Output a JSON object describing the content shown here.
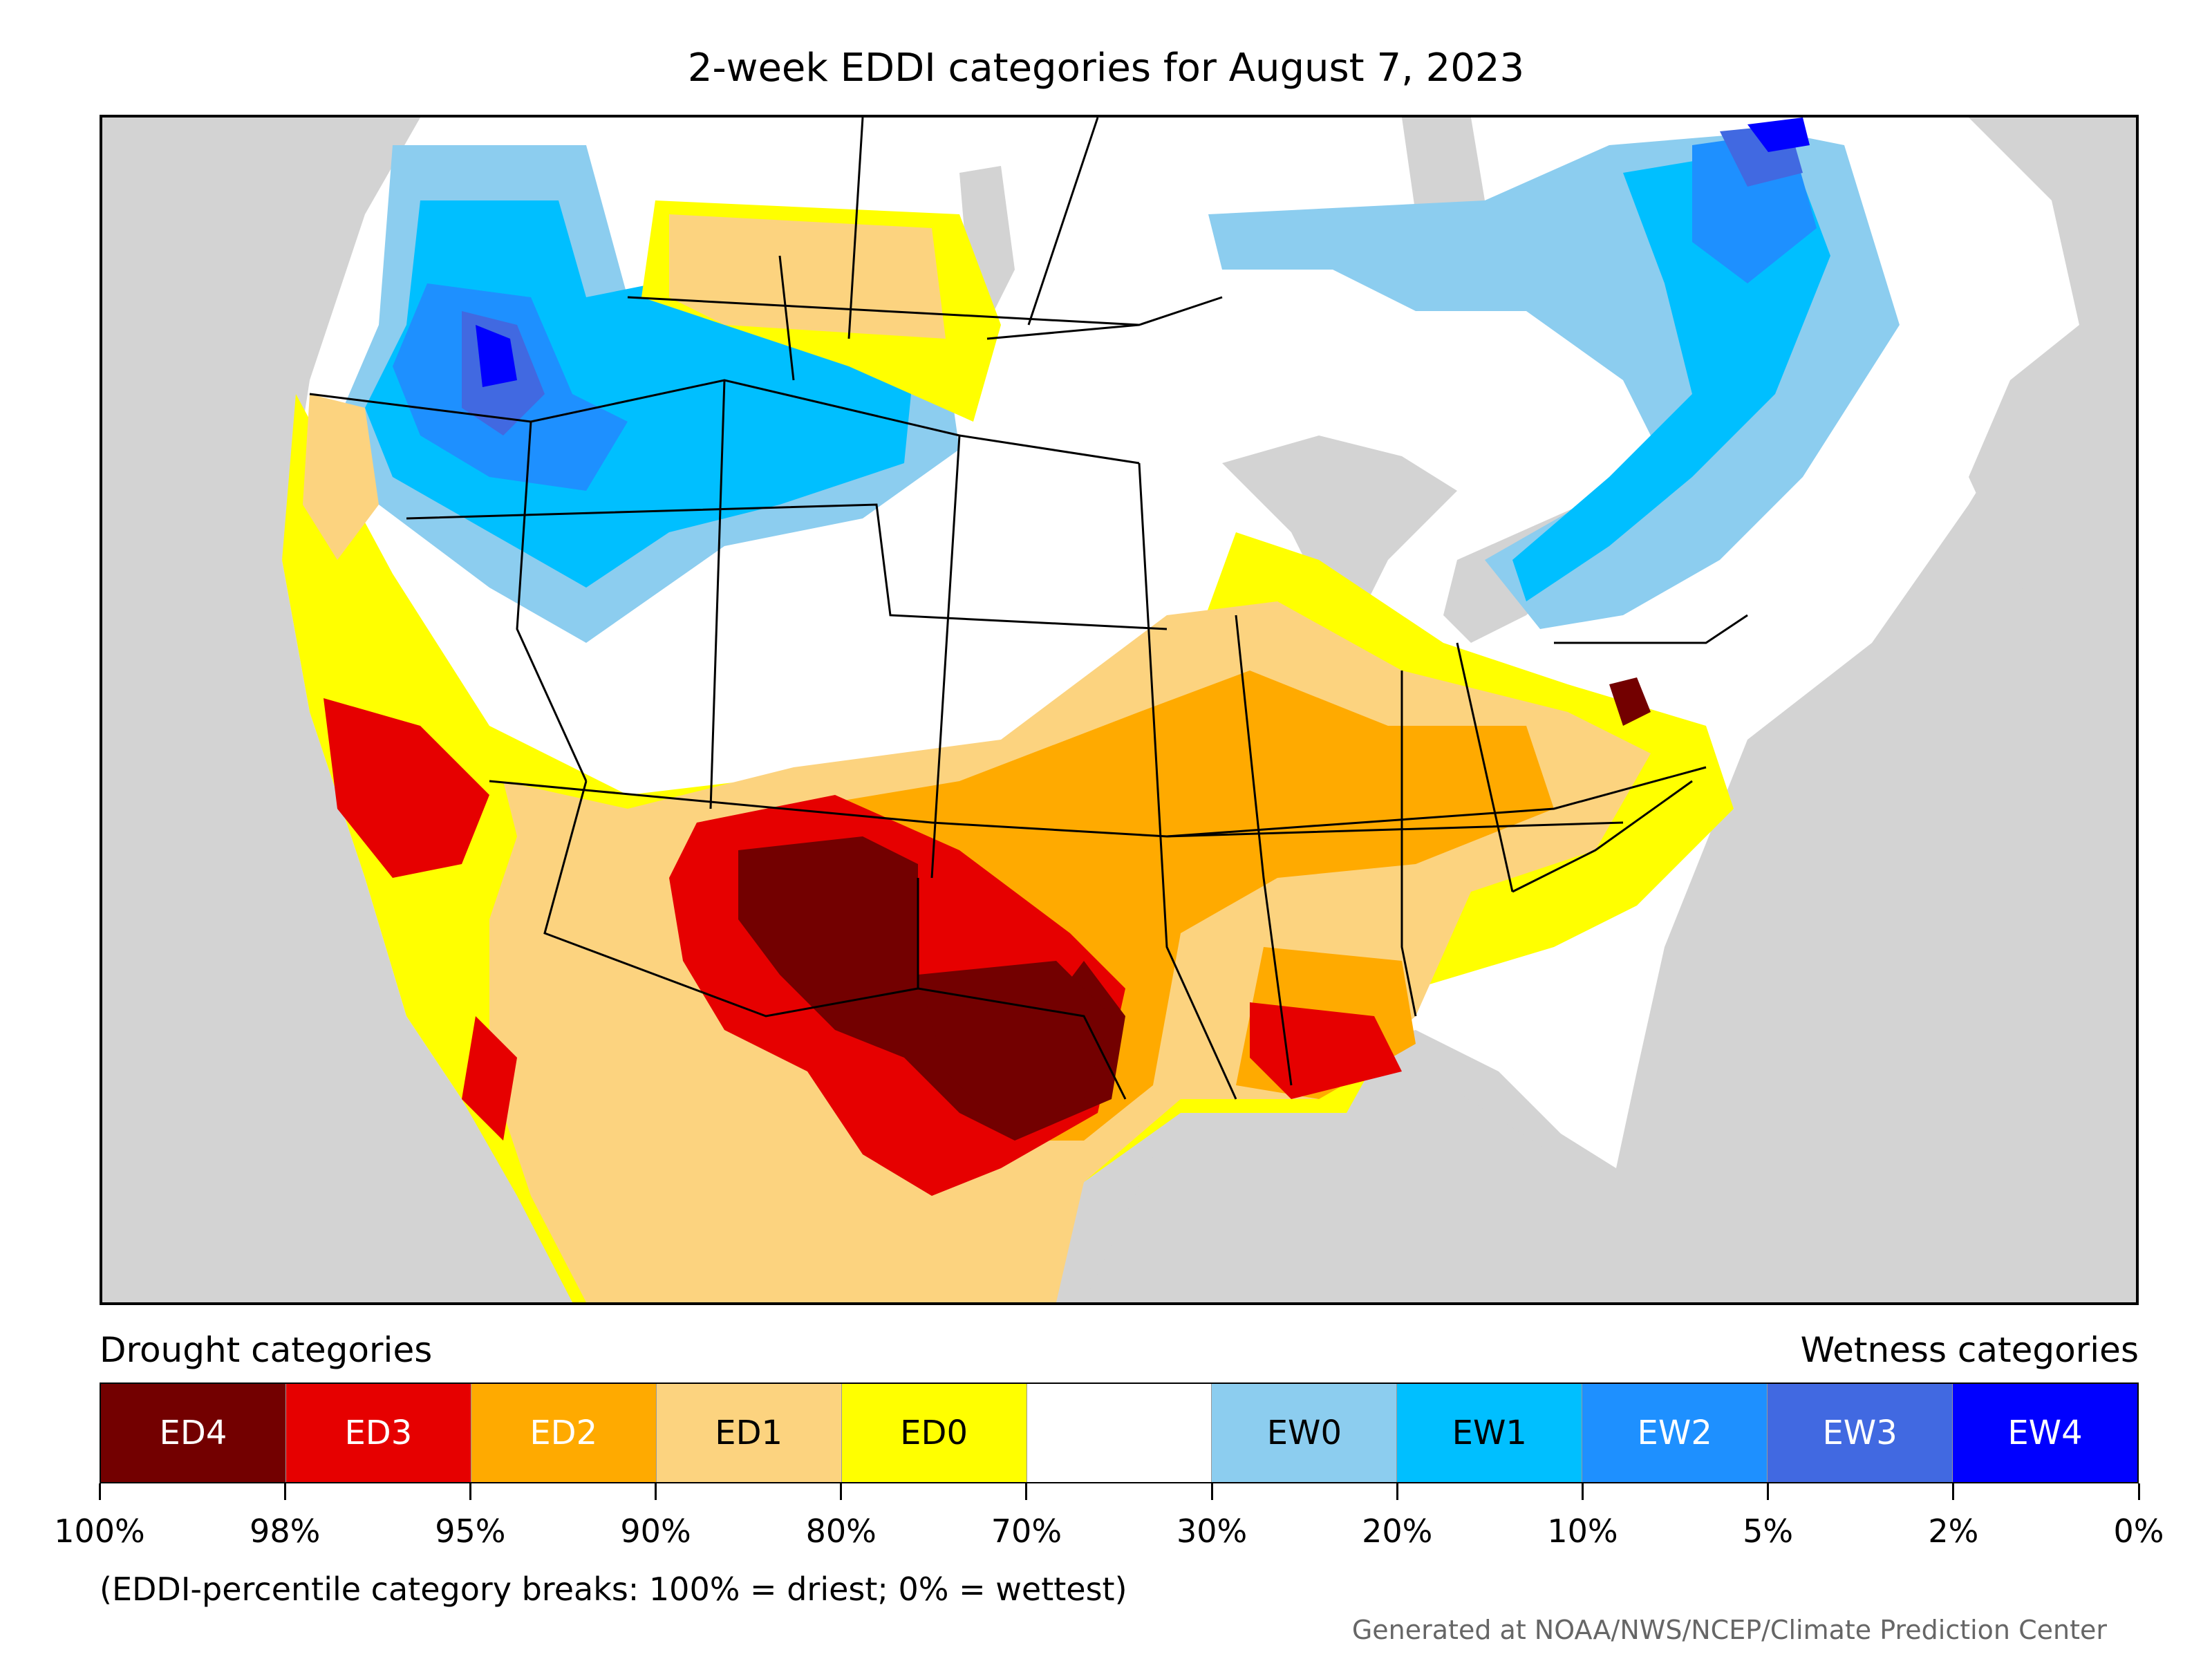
{
  "title": "2-week EDDI categories for August 7, 2023",
  "map": {
    "region": "Contiguous United States",
    "colors": {
      "ED4": "#730000",
      "ED3": "#e60000",
      "ED2": "#ffaa00",
      "ED1": "#fcd37f",
      "ED0": "#ffff00",
      "neutral": "#ffffff",
      "EW0": "#8ccdef",
      "EW1": "#00bfff",
      "EW2": "#1e90ff",
      "EW3": "#4169e1",
      "EW4": "#0000ff",
      "background": "#d3d3d3"
    }
  },
  "legend": {
    "drought_heading": "Drought categories",
    "wetness_heading": "Wetness categories",
    "categories": [
      {
        "label": "ED4",
        "color": "#730000",
        "text_color": "#ffffff"
      },
      {
        "label": "ED3",
        "color": "#e60000",
        "text_color": "#ffffff"
      },
      {
        "label": "ED2",
        "color": "#ffaa00",
        "text_color": "#ffffff"
      },
      {
        "label": "ED1",
        "color": "#fcd37f",
        "text_color": "#000000"
      },
      {
        "label": "ED0",
        "color": "#ffff00",
        "text_color": "#000000"
      },
      {
        "label": "",
        "color": "#ffffff",
        "text_color": "#000000"
      },
      {
        "label": "EW0",
        "color": "#8ccdef",
        "text_color": "#000000"
      },
      {
        "label": "EW1",
        "color": "#00bfff",
        "text_color": "#000000"
      },
      {
        "label": "EW2",
        "color": "#1e90ff",
        "text_color": "#ffffff"
      },
      {
        "label": "EW3",
        "color": "#4169e1",
        "text_color": "#ffffff"
      },
      {
        "label": "EW4",
        "color": "#0000ff",
        "text_color": "#ffffff"
      }
    ],
    "tick_labels": [
      "100%",
      "98%",
      "95%",
      "90%",
      "80%",
      "70%",
      "30%",
      "20%",
      "10%",
      "5%",
      "2%",
      "0%"
    ]
  },
  "note": "(EDDI-percentile category breaks: 100% = driest; 0% = wettest)",
  "credit": "Generated at NOAA/NWS/NCEP/Climate Prediction Center"
}
